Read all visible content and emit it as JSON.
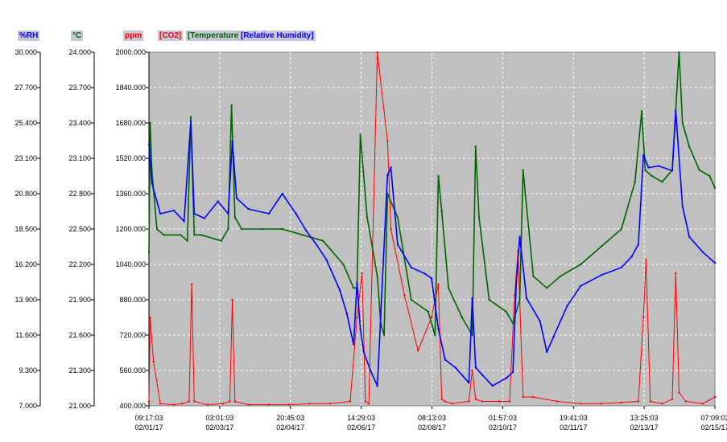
{
  "chart_data": {
    "type": "line",
    "axes": {
      "humidity": {
        "unit": "%RH",
        "color": "#0000ff",
        "ylim": [
          7.0,
          30.0
        ],
        "ticks": [
          "30.000",
          "27.700",
          "25.400",
          "23.100",
          "20.800",
          "18.500",
          "16.200",
          "13.900",
          "11.600",
          "9.300",
          "7.000"
        ]
      },
      "temperature": {
        "unit": "°C",
        "color": "#006400",
        "ylim": [
          21.0,
          24.0
        ],
        "ticks": [
          "24.000",
          "23.700",
          "23.400",
          "23.100",
          "22.800",
          "22.500",
          "22.200",
          "21.900",
          "21.600",
          "21.300",
          "21.000"
        ]
      },
      "co2": {
        "unit": "ppm",
        "color": "#ff0000",
        "ylim": [
          400,
          2000
        ],
        "ticks": [
          "2000.000",
          "1840.000",
          "1680.000",
          "1520.000",
          "1360.000",
          "1200.000",
          "1040.000",
          "880.000",
          "720.000",
          "560.000",
          "400.000"
        ]
      }
    },
    "legend": [
      {
        "label": "[CO2]",
        "color": "#ff0000"
      },
      {
        "label": "[Temperature]",
        "color": "#006400"
      },
      {
        "label": "[Relative Humidity]",
        "color": "#0000ff"
      }
    ],
    "x_ticks": [
      {
        "time": "09:17:03",
        "date": "02/01/17"
      },
      {
        "time": "03:01:03",
        "date": "02/03/17"
      },
      {
        "time": "20:45:03",
        "date": "02/04/17"
      },
      {
        "time": "14:29:03",
        "date": "02/06/17"
      },
      {
        "time": "08:13:03",
        "date": "02/08/17"
      },
      {
        "time": "01:57:03",
        "date": "02/10/17"
      },
      {
        "time": "19:41:03",
        "date": "02/11/17"
      },
      {
        "time": "13:25:03",
        "date": "02/13/17"
      },
      {
        "time": "07:09:03",
        "date": "02/15/17"
      }
    ],
    "xlim": [
      "02/01/17 09:17:03",
      "02/15/17 07:09:03"
    ],
    "grid": true,
    "background": "#c0c0c0",
    "series": [
      {
        "name": "[CO2]",
        "axis": "co2",
        "color": "#ff0000",
        "x": [
          "02/01/17 09:17",
          "02/01/17 10:00",
          "02/01/17 12:00",
          "02/01/17 16:00",
          "02/02/17 00:00",
          "02/02/17 05:00",
          "02/02/17 09:00",
          "02/02/17 10:30",
          "02/02/17 12:00",
          "02/02/17 20:00",
          "02/03/17 05:00",
          "02/03/17 09:00",
          "02/03/17 10:30",
          "02/03/17 12:00",
          "02/03/17 20:00",
          "02/04/17 08:00",
          "02/04/17 20:00",
          "02/05/17 08:00",
          "02/05/17 20:00",
          "02/06/17 08:00",
          "02/06/17 12:00",
          "02/06/17 15:00",
          "02/06/17 17:00",
          "02/06/17 19:00",
          "02/07/17 00:00",
          "02/07/17 06:00",
          "02/07/17 08:00",
          "02/07/17 16:00",
          "02/08/17 00:00",
          "02/08/17 08:00",
          "02/08/17 12:00",
          "02/08/17 14:00",
          "02/08/17 16:00",
          "02/08/17 20:00",
          "02/09/17 06:00",
          "02/09/17 08:00",
          "02/09/17 10:00",
          "02/09/17 14:00",
          "02/10/17 00:00",
          "02/10/17 06:00",
          "02/10/17 09:00",
          "02/10/17 11:00",
          "02/10/17 14:00",
          "02/10/17 20:00",
          "02/11/17 10:00",
          "02/12/17 00:00",
          "02/12/17 12:00",
          "02/13/17 00:00",
          "02/13/17 10:00",
          "02/13/17 13:00",
          "02/13/17 14:30",
          "02/13/17 17:00",
          "02/14/17 00:00",
          "02/14/17 06:00",
          "02/14/17 08:00",
          "02/14/17 10:00",
          "02/14/17 14:00",
          "02/15/17 00:00",
          "02/15/17 07:09"
        ],
        "y": [
          420,
          800,
          600,
          410,
          405,
          410,
          420,
          950,
          420,
          405,
          410,
          420,
          880,
          420,
          405,
          405,
          405,
          410,
          410,
          420,
          800,
          1000,
          420,
          410,
          2000,
          1600,
          1200,
          900,
          650,
          800,
          950,
          430,
          420,
          410,
          420,
          560,
          430,
          420,
          420,
          420,
          900,
          1100,
          440,
          440,
          420,
          410,
          410,
          415,
          420,
          800,
          1060,
          420,
          410,
          430,
          1000,
          460,
          420,
          410,
          440
        ]
      },
      {
        "name": "[Temperature]",
        "axis": "temperature",
        "color": "#006400",
        "x": [
          "02/01/17 09:17",
          "02/01/17 10:00",
          "02/01/17 11:00",
          "02/01/17 14:00",
          "02/01/17 18:00",
          "02/02/17 04:00",
          "02/02/17 08:00",
          "02/02/17 10:00",
          "02/02/17 12:00",
          "02/02/17 16:00",
          "02/03/17 04:00",
          "02/03/17 08:00",
          "02/03/17 10:00",
          "02/03/17 12:00",
          "02/03/17 16:00",
          "02/04/17 04:00",
          "02/04/17 16:00",
          "02/05/17 04:00",
          "02/05/17 16:00",
          "02/06/17 04:00",
          "02/06/17 10:00",
          "02/06/17 12:00",
          "02/06/17 14:00",
          "02/06/17 18:00",
          "02/07/17 00:00",
          "02/07/17 02:00",
          "02/07/17 04:00",
          "02/07/17 06:00",
          "02/07/17 12:00",
          "02/07/17 20:00",
          "02/08/17 06:00",
          "02/08/17 10:00",
          "02/08/17 12:00",
          "02/08/17 14:00",
          "02/08/17 18:00",
          "02/09/17 02:00",
          "02/09/17 08:00",
          "02/09/17 10:00",
          "02/09/17 12:00",
          "02/09/17 18:00",
          "02/10/17 04:00",
          "02/10/17 08:00",
          "02/10/17 12:00",
          "02/10/17 14:00",
          "02/10/17 20:00",
          "02/11/17 04:00",
          "02/11/17 12:00",
          "02/12/17 00:00",
          "02/12/17 12:00",
          "02/13/17 00:00",
          "02/13/17 08:00",
          "02/13/17 12:00",
          "02/13/17 14:00",
          "02/13/17 18:00",
          "02/14/17 00:00",
          "02/14/17 06:00",
          "02/14/17 10:00",
          "02/14/17 12:00",
          "02/14/17 16:00",
          "02/14/17 22:00",
          "02/15/17 04:00",
          "02/15/17 07:09"
        ],
        "y": [
          22.3,
          23.4,
          23.0,
          22.5,
          22.45,
          22.45,
          22.4,
          23.45,
          22.45,
          22.45,
          22.4,
          22.5,
          23.55,
          22.6,
          22.5,
          22.5,
          22.5,
          22.45,
          22.4,
          22.2,
          22.0,
          22.0,
          23.3,
          22.6,
          22.1,
          21.7,
          21.6,
          22.8,
          22.6,
          21.9,
          21.8,
          21.6,
          22.95,
          22.65,
          22.0,
          21.75,
          21.6,
          23.2,
          22.6,
          21.9,
          21.8,
          21.7,
          21.9,
          23.0,
          22.1,
          22.0,
          22.1,
          22.2,
          22.35,
          22.5,
          22.9,
          23.5,
          23.0,
          22.95,
          22.9,
          23.0,
          24.0,
          23.4,
          23.2,
          23.0,
          22.95,
          22.85
        ]
      },
      {
        "name": "[Relative Humidity]",
        "axis": "humidity",
        "color": "#0000ff",
        "x": [
          "02/01/17 09:17",
          "02/01/17 11:00",
          "02/01/17 16:00",
          "02/02/17 00:00",
          "02/02/17 06:00",
          "02/02/17 10:00",
          "02/02/17 12:00",
          "02/02/17 18:00",
          "02/03/17 02:00",
          "02/03/17 08:00",
          "02/03/17 10:30",
          "02/03/17 13:00",
          "02/03/17 20:00",
          "02/04/17 08:00",
          "02/04/17 16:00",
          "02/05/17 00:00",
          "02/05/17 06:00",
          "02/05/17 12:00",
          "02/05/17 18:00",
          "02/06/17 02:00",
          "02/06/17 06:00",
          "02/06/17 10:00",
          "02/06/17 12:00",
          "02/06/17 14:00",
          "02/06/17 16:00",
          "02/06/17 20:00",
          "02/07/17 00:00",
          "02/07/17 06:00",
          "02/07/17 08:00",
          "02/07/17 12:00",
          "02/07/17 20:00",
          "02/08/17 04:00",
          "02/08/17 08:00",
          "02/08/17 12:00",
          "02/08/17 16:00",
          "02/08/17 22:00",
          "02/09/17 06:00",
          "02/09/17 08:00",
          "02/09/17 10:00",
          "02/09/17 14:00",
          "02/09/17 20:00",
          "02/10/17 04:00",
          "02/10/17 08:00",
          "02/10/17 10:00",
          "02/10/17 12:00",
          "02/10/17 16:00",
          "02/11/17 00:00",
          "02/11/17 04:00",
          "02/11/17 08:00",
          "02/11/17 16:00",
          "02/12/17 00:00",
          "02/12/17 12:00",
          "02/13/17 00:00",
          "02/13/17 06:00",
          "02/13/17 10:00",
          "02/13/17 13:00",
          "02/13/17 16:00",
          "02/13/17 22:00",
          "02/14/17 06:00",
          "02/14/17 08:00",
          "02/14/17 12:00",
          "02/14/17 16:00",
          "02/15/17 00:00",
          "02/15/17 07:09"
        ],
        "y": [
          24.0,
          21.5,
          19.5,
          19.7,
          19.0,
          25.5,
          19.5,
          19.2,
          20.3,
          19.5,
          24.2,
          20.5,
          19.8,
          19.5,
          20.8,
          19.5,
          18.4,
          17.5,
          16.5,
          14.5,
          13.0,
          11.0,
          15.0,
          12.0,
          10.5,
          9.3,
          8.3,
          22.0,
          22.5,
          17.5,
          16.0,
          15.6,
          15.3,
          12.0,
          10.0,
          9.5,
          8.5,
          14.0,
          9.5,
          9.0,
          8.3,
          8.8,
          9.2,
          15.0,
          18.0,
          14.0,
          12.5,
          10.5,
          11.5,
          13.5,
          14.8,
          15.5,
          16.0,
          16.7,
          17.5,
          23.3,
          22.5,
          22.6,
          22.3,
          26.2,
          20.0,
          18.0,
          17.0,
          16.3
        ]
      }
    ]
  }
}
